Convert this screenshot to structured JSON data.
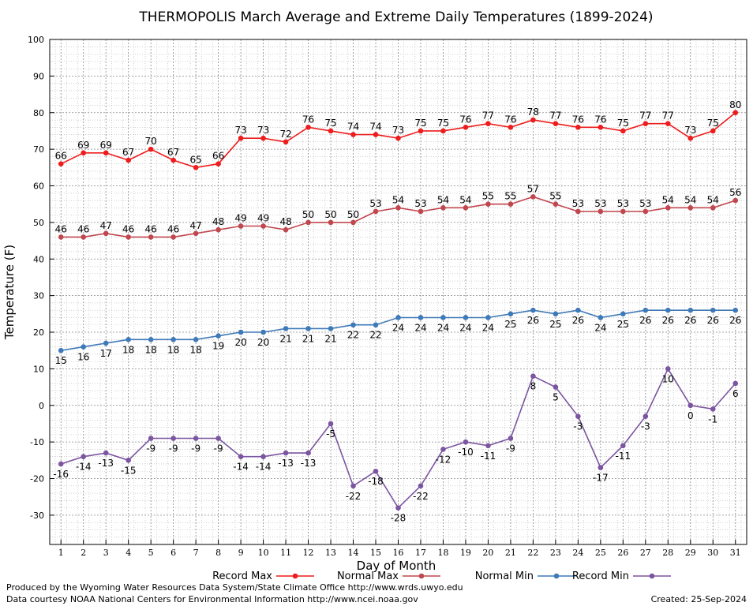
{
  "chart_data": {
    "type": "line",
    "title": "THERMOPOLIS March Average and Extreme Daily Temperatures (1899-2024)",
    "xlabel": "Day of Month",
    "ylabel": "Temperature (F)",
    "ylim": [
      -38,
      100
    ],
    "yticks": [
      -30,
      -20,
      -10,
      0,
      10,
      20,
      30,
      40,
      50,
      60,
      70,
      80,
      90,
      100
    ],
    "x": [
      1,
      2,
      3,
      4,
      5,
      6,
      7,
      8,
      9,
      10,
      11,
      12,
      13,
      14,
      15,
      16,
      17,
      18,
      19,
      20,
      21,
      22,
      23,
      24,
      25,
      26,
      27,
      28,
      29,
      30,
      31
    ],
    "grid": true,
    "legend_position": "bottom",
    "series": [
      {
        "name": "Record Max",
        "color": "#ee1c1c",
        "values": [
          66,
          69,
          69,
          67,
          70,
          67,
          65,
          66,
          73,
          73,
          72,
          76,
          75,
          74,
          74,
          73,
          75,
          75,
          76,
          77,
          76,
          78,
          77,
          76,
          76,
          75,
          77,
          77,
          73,
          75,
          80
        ]
      },
      {
        "name": "Normal Max",
        "color": "#c0474e",
        "values": [
          46,
          46,
          47,
          46,
          46,
          46,
          47,
          48,
          49,
          49,
          48,
          50,
          50,
          50,
          53,
          54,
          53,
          54,
          54,
          55,
          55,
          57,
          55,
          53,
          53,
          53,
          53,
          54,
          54,
          54,
          56
        ]
      },
      {
        "name": "Normal Min",
        "color": "#3f7ab8",
        "values": [
          15,
          16,
          17,
          18,
          18,
          18,
          18,
          19,
          20,
          20,
          21,
          21,
          21,
          22,
          22,
          24,
          24,
          24,
          24,
          24,
          25,
          26,
          25,
          26,
          24,
          25,
          26,
          26,
          26,
          26,
          26
        ]
      },
      {
        "name": "Record Min",
        "color": "#7b55a0",
        "values": [
          -16,
          -14,
          -13,
          -15,
          -9,
          -9,
          -9,
          -9,
          -14,
          -14,
          -13,
          -13,
          -5,
          -22,
          -18,
          -28,
          -22,
          -12,
          -10,
          -11,
          -9,
          8,
          5,
          -3,
          -17,
          -11,
          -3,
          10,
          0,
          -1,
          6
        ]
      }
    ]
  },
  "footer": {
    "producer": "Produced by the Wyoming Water Resources Data System/State Climate Office http://www.wrds.uwyo.edu",
    "source": "Data courtesy NOAA National Centers for Environmental Information http://www.ncei.noaa.gov",
    "created": "Created:  25-Sep-2024"
  }
}
